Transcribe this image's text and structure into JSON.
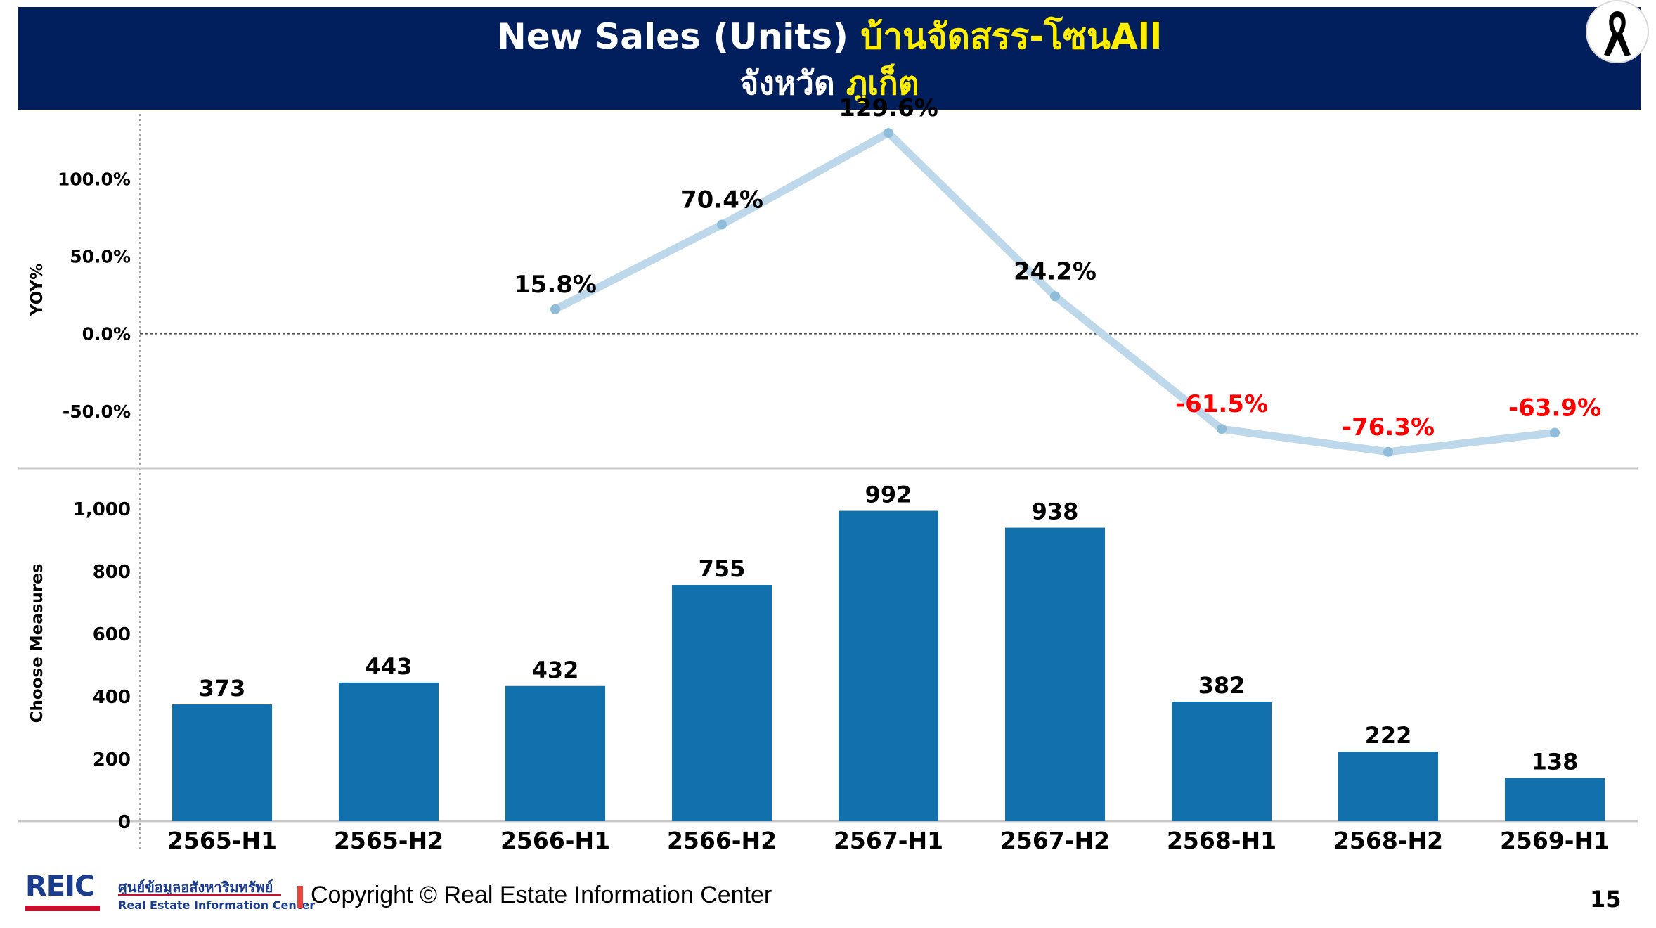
{
  "header": {
    "title_en": "New Sales (Units) ",
    "title_th": "บ้านจัดสรร-โซน",
    "title_zone": "All",
    "province_label": "จังหวัด ",
    "province_name": "ภูเก็ต"
  },
  "chart_data": {
    "type": "bar",
    "categories": [
      "2565-H1",
      "2565-H2",
      "2566-H1",
      "2566-H2",
      "2567-H1",
      "2567-H2",
      "2568-H1",
      "2568-H2",
      "2569-H1"
    ],
    "bars": {
      "ylabel": "Choose Measures",
      "values": [
        373,
        443,
        432,
        755,
        992,
        938,
        382,
        222,
        138
      ],
      "data_labels": [
        "373",
        "443",
        "432",
        "755",
        "992",
        "938",
        "382",
        "222",
        "138"
      ],
      "ylim": [
        0,
        1100
      ],
      "ticks": [
        0,
        200,
        400,
        600,
        800,
        1000
      ],
      "tick_labels": [
        "0",
        "200",
        "400",
        "600",
        "800",
        "1,000"
      ],
      "color": "#1270ac"
    },
    "yoy": {
      "type": "line",
      "ylabel": "YOY%",
      "values": [
        null,
        null,
        15.8,
        70.4,
        129.6,
        24.2,
        -61.5,
        -76.3,
        -63.9
      ],
      "data_labels": [
        "",
        "",
        "15.8%",
        "70.4%",
        "129.6%",
        "24.2%",
        "-61.5%",
        "-76.3%",
        "-63.9%"
      ],
      "ylim": [
        -90,
        136
      ],
      "ticks": [
        -50,
        0,
        50,
        100
      ],
      "tick_labels": [
        "-50.0%",
        "0.0%",
        "50.0%",
        "100.0%"
      ],
      "line_color": "#bcd8ea",
      "positive_label_color": "#000000",
      "negative_label_color": "#ff0000"
    }
  },
  "footer": {
    "logo_text": "REIC",
    "logo_thai": "ศูนย์ข้อมูลอสังหาริมทรัพย์",
    "logo_en": "Real Estate Information Center",
    "copyright": "Copyright © Real Estate Information Center",
    "page_number": "15"
  },
  "colors": {
    "header_bg": "#001f5c",
    "title_white": "#ffffff",
    "title_yellow": "#ffee00"
  }
}
